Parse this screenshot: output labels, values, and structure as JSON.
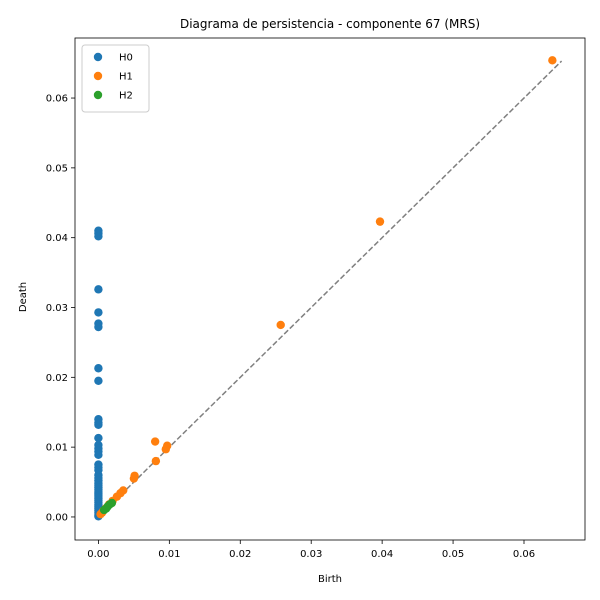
{
  "chart_data": {
    "type": "scatter",
    "title": "Diagrama de persistencia - componente 67 (MRS)",
    "xlabel": "Birth",
    "ylabel": "Death",
    "xlim": [
      -0.0033,
      0.0686
    ],
    "ylim": [
      -0.0033,
      0.0686
    ],
    "xticks": [
      0.0,
      0.01,
      0.02,
      0.03,
      0.04,
      0.05,
      0.06
    ],
    "yticks": [
      0.0,
      0.01,
      0.02,
      0.03,
      0.04,
      0.05,
      0.06
    ],
    "xtick_labels": [
      "0.00",
      "0.01",
      "0.02",
      "0.03",
      "0.04",
      "0.05",
      "0.06"
    ],
    "ytick_labels": [
      "0.00",
      "0.01",
      "0.02",
      "0.03",
      "0.04",
      "0.05",
      "0.06"
    ],
    "diagonal": {
      "style": "dashed",
      "color": "#808080",
      "from": [
        0.0,
        0.0
      ],
      "to": [
        0.0653,
        0.0653
      ]
    },
    "legend": {
      "position": "top-left"
    },
    "grid": false,
    "series": [
      {
        "name": "H0",
        "color": "#1f77b4",
        "points": [
          [
            0,
            0.041
          ],
          [
            0,
            0.0406
          ],
          [
            0,
            0.0402
          ],
          [
            0,
            0.0326
          ],
          [
            0,
            0.0293
          ],
          [
            0,
            0.0277
          ],
          [
            0,
            0.0272
          ],
          [
            0,
            0.0213
          ],
          [
            0,
            0.0195
          ],
          [
            0,
            0.014
          ],
          [
            0,
            0.0135
          ],
          [
            0,
            0.0132
          ],
          [
            0,
            0.0113
          ],
          [
            0,
            0.0103
          ],
          [
            0,
            0.0098
          ],
          [
            0,
            0.0094
          ],
          [
            0,
            0.0089
          ],
          [
            0,
            0.0075
          ],
          [
            0,
            0.0071
          ],
          [
            0,
            0.0067
          ],
          [
            0,
            0.006
          ],
          [
            0,
            0.0056
          ],
          [
            0,
            0.0052
          ],
          [
            0,
            0.0048
          ],
          [
            0,
            0.0045
          ],
          [
            0,
            0.0042
          ],
          [
            0,
            0.0039
          ],
          [
            0,
            0.0036
          ],
          [
            0,
            0.0033
          ],
          [
            0,
            0.003
          ],
          [
            0,
            0.0027
          ],
          [
            0,
            0.0024
          ],
          [
            0,
            0.0021
          ],
          [
            0,
            0.0018
          ],
          [
            0,
            0.0015
          ],
          [
            0,
            0.0012
          ],
          [
            0,
            0.0009
          ],
          [
            0,
            0.0006
          ],
          [
            0,
            0.0003
          ],
          [
            0,
            0.0001
          ]
        ]
      },
      {
        "name": "H1",
        "color": "#ff7f0e",
        "points": [
          [
            0.064,
            0.0654
          ],
          [
            0.0397,
            0.0423
          ],
          [
            0.0257,
            0.0275
          ],
          [
            0.008,
            0.0108
          ],
          [
            0.0097,
            0.0102
          ],
          [
            0.0095,
            0.0097
          ],
          [
            0.0081,
            0.008
          ],
          [
            0.0051,
            0.0059
          ],
          [
            0.005,
            0.0055
          ],
          [
            0.0035,
            0.0038
          ],
          [
            0.0031,
            0.0034
          ],
          [
            0.0026,
            0.0029
          ],
          [
            0.002,
            0.0023
          ],
          [
            0.0015,
            0.0018
          ],
          [
            0.001,
            0.0012
          ],
          [
            0.0007,
            0.0009
          ],
          [
            0.0005,
            0.0006
          ],
          [
            0.0003,
            0.0004
          ]
        ]
      },
      {
        "name": "H2",
        "color": "#2ca02c",
        "points": [
          [
            0.0019,
            0.002
          ],
          [
            0.0016,
            0.0018
          ],
          [
            0.0013,
            0.0015
          ],
          [
            0.0011,
            0.0012
          ],
          [
            0.0008,
            0.001
          ]
        ]
      }
    ]
  }
}
